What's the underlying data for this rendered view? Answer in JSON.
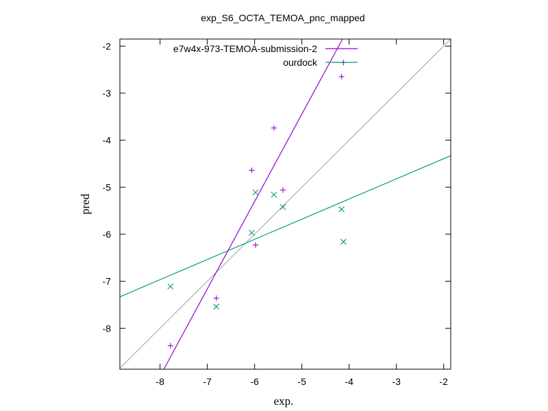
{
  "chart_data": {
    "type": "scatter",
    "title": "exp_S6_OCTA_TEMOA_pnc_mapped",
    "xlabel": "exp.",
    "ylabel": "pred",
    "xlim": [
      -8.85,
      -1.85
    ],
    "ylim": [
      -8.87,
      -1.85
    ],
    "xticks": [
      -8,
      -7,
      -6,
      -5,
      -4,
      -3,
      -2
    ],
    "yticks": [
      -8,
      -7,
      -6,
      -5,
      -4,
      -3,
      -2
    ],
    "grid": false,
    "legend_position": "top-right",
    "identity_line": {
      "color": "#a0a0a0"
    },
    "series": [
      {
        "name": "e7w4x-973-TEMOA-submission-2",
        "marker": "plus",
        "color": "#9400d3",
        "points": [
          {
            "x": -7.78,
            "y": -8.37
          },
          {
            "x": -6.81,
            "y": -7.36
          },
          {
            "x": -6.06,
            "y": -4.64
          },
          {
            "x": -5.98,
            "y": -6.23
          },
          {
            "x": -5.59,
            "y": -3.74
          },
          {
            "x": -5.4,
            "y": -5.06
          },
          {
            "x": -4.16,
            "y": -2.65
          },
          {
            "x": -4.12,
            "y": -2.35
          }
        ],
        "fit": [
          [
            -7.92,
            -8.87
          ],
          [
            -4.14,
            -1.85
          ]
        ]
      },
      {
        "name": "ourdock",
        "marker": "cross",
        "color": "#009e73",
        "points": [
          {
            "x": -7.78,
            "y": -7.11
          },
          {
            "x": -6.81,
            "y": -7.54
          },
          {
            "x": -6.06,
            "y": -5.97
          },
          {
            "x": -5.98,
            "y": -5.11
          },
          {
            "x": -5.59,
            "y": -5.16
          },
          {
            "x": -5.4,
            "y": -5.42
          },
          {
            "x": -4.16,
            "y": -5.47
          },
          {
            "x": -4.12,
            "y": -6.16
          }
        ],
        "fit": [
          [
            -8.85,
            -7.33
          ],
          [
            -1.85,
            -4.33
          ]
        ]
      }
    ]
  }
}
